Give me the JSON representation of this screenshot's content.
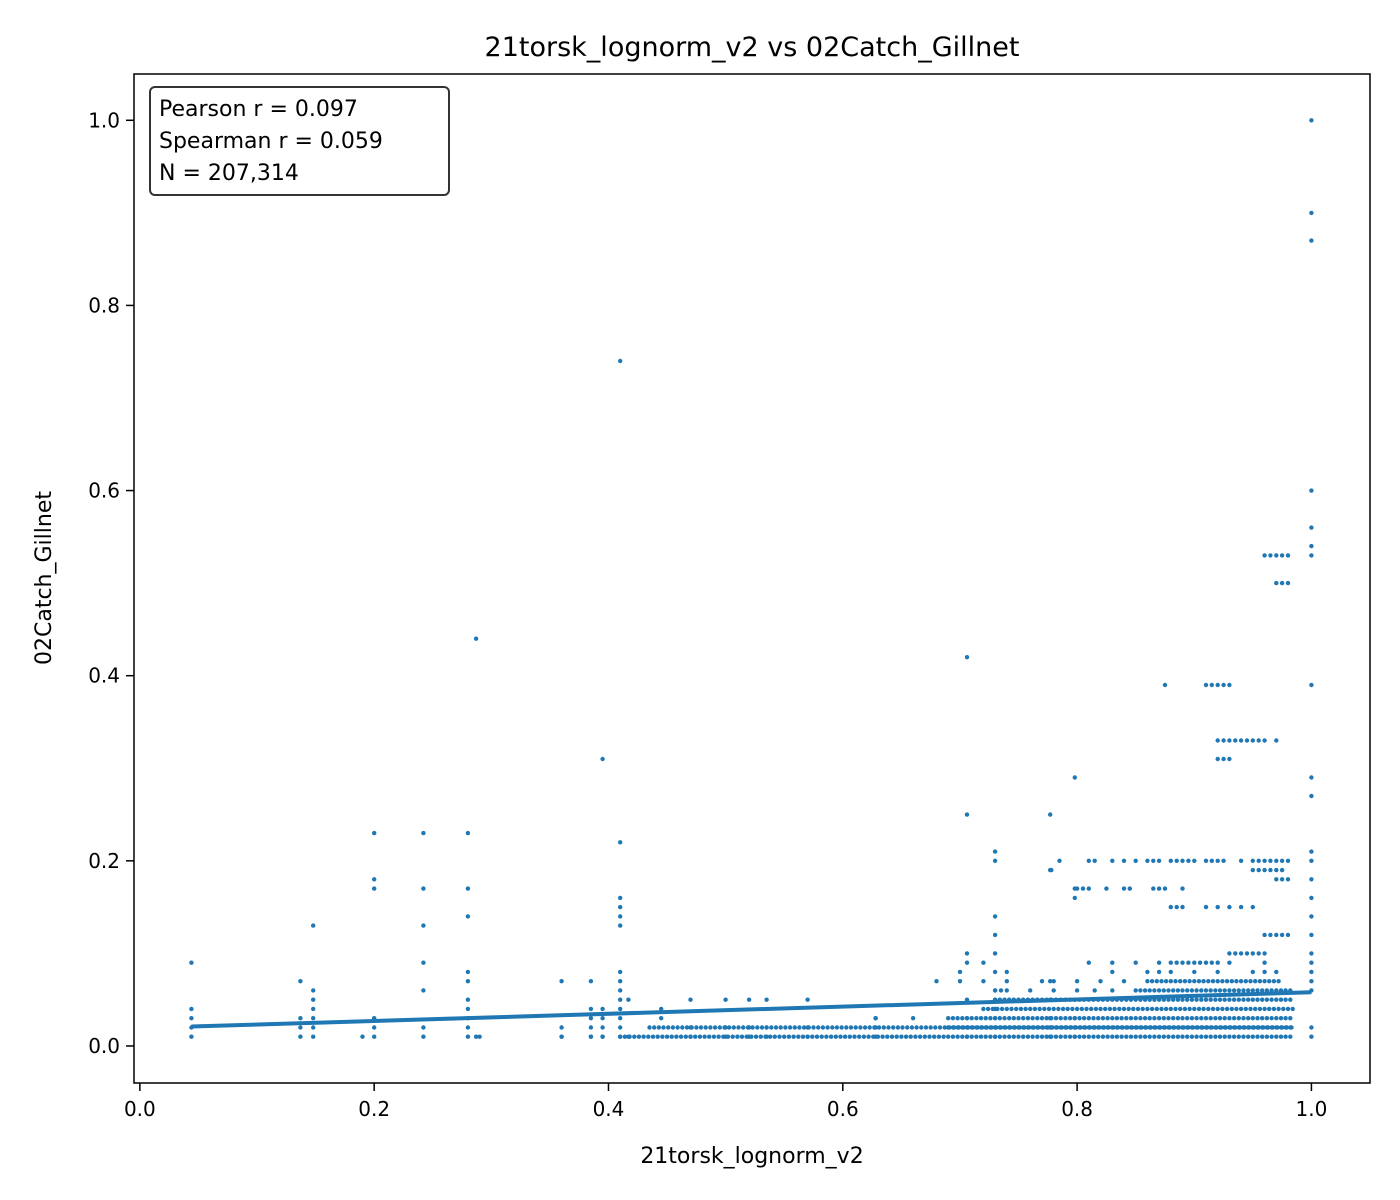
{
  "chart_data": {
    "type": "scatter",
    "title": "21torsk_lognorm_v2 vs 02Catch_Gillnet",
    "xlabel": "21torsk_lognorm_v2",
    "ylabel": "02Catch_Gillnet",
    "xlim": [
      -0.005,
      1.05
    ],
    "ylim": [
      -0.04,
      1.05
    ],
    "xticks": [
      0.0,
      0.2,
      0.4,
      0.6,
      0.8,
      1.0
    ],
    "xtick_labels": [
      "0.0",
      "0.2",
      "0.4",
      "0.6",
      "0.8",
      "1.0"
    ],
    "yticks": [
      0.0,
      0.2,
      0.4,
      0.6,
      0.8,
      1.0
    ],
    "ytick_labels": [
      "0.0",
      "0.2",
      "0.4",
      "0.6",
      "0.8",
      "1.0"
    ],
    "grid": false,
    "stats_box": {
      "placement": "top-left",
      "lines": [
        "Pearson r = 0.097",
        "Spearman r = 0.059",
        "N = 207,314"
      ]
    },
    "point_color": "#1f77b4",
    "regression_line": {
      "color": "#1f77b4",
      "x": [
        0.044,
        1.0
      ],
      "y": [
        0.021,
        0.058
      ]
    },
    "columns": [
      {
        "x": 0.044,
        "y": [
          0.01,
          0.02,
          0.03,
          0.04,
          0.09
        ]
      },
      {
        "x": 0.137,
        "y": [
          0.01,
          0.02,
          0.03,
          0.07
        ]
      },
      {
        "x": 0.148,
        "y": [
          0.01,
          0.02,
          0.03,
          0.04,
          0.05,
          0.06,
          0.13
        ]
      },
      {
        "x": 0.19,
        "y": [
          0.01
        ]
      },
      {
        "x": 0.2,
        "y": [
          0.01,
          0.02,
          0.03,
          0.17,
          0.18,
          0.23
        ]
      },
      {
        "x": 0.242,
        "y": [
          0.01,
          0.02,
          0.06,
          0.09,
          0.13,
          0.17,
          0.23
        ]
      },
      {
        "x": 0.28,
        "y": [
          0.01,
          0.02,
          0.03,
          0.04,
          0.05,
          0.07,
          0.08,
          0.14,
          0.17,
          0.23
        ]
      },
      {
        "x": 0.287,
        "y": [
          0.01,
          0.44
        ]
      },
      {
        "x": 0.36,
        "y": [
          0.01,
          0.02,
          0.07
        ]
      },
      {
        "x": 0.385,
        "y": [
          0.01,
          0.02,
          0.03,
          0.04,
          0.07
        ]
      },
      {
        "x": 0.395,
        "y": [
          0.01,
          0.02,
          0.03,
          0.04,
          0.31
        ]
      },
      {
        "x": 0.41,
        "y": [
          0.01,
          0.02,
          0.03,
          0.04,
          0.05,
          0.06,
          0.07,
          0.08,
          0.13,
          0.14,
          0.15,
          0.16,
          0.22,
          0.74
        ]
      },
      {
        "x": 0.417,
        "y": [
          0.01,
          0.05
        ]
      },
      {
        "x": 0.47,
        "y": [
          0.01,
          0.02,
          0.05
        ]
      },
      {
        "x": 0.5,
        "y": [
          0.01,
          0.02,
          0.05
        ]
      },
      {
        "x": 0.52,
        "y": [
          0.01,
          0.02,
          0.05
        ]
      },
      {
        "x": 0.535,
        "y": [
          0.01,
          0.02,
          0.05
        ]
      },
      {
        "x": 0.57,
        "y": [
          0.01,
          0.02,
          0.05
        ]
      },
      {
        "x": 0.628,
        "y": [
          0.01,
          0.02,
          0.03
        ]
      },
      {
        "x": 0.706,
        "y": [
          0.01,
          0.02,
          0.03,
          0.05,
          0.09,
          0.1,
          0.25,
          0.42
        ]
      },
      {
        "x": 0.73,
        "y": [
          0.01,
          0.02,
          0.03,
          0.04,
          0.05,
          0.06,
          0.08,
          0.1,
          0.12,
          0.14,
          0.2,
          0.21
        ]
      },
      {
        "x": 0.777,
        "y": [
          0.01,
          0.02,
          0.03,
          0.05,
          0.07,
          0.19,
          0.25
        ]
      },
      {
        "x": 0.798,
        "y": [
          0.01,
          0.02,
          0.03,
          0.05,
          0.16,
          0.17,
          0.29
        ]
      },
      {
        "x": 0.875,
        "y": [
          0.39
        ]
      },
      {
        "x": 1.0,
        "y": [
          0.01,
          0.02,
          0.06,
          0.07,
          0.08,
          0.09,
          0.1,
          0.12,
          0.14,
          0.16,
          0.18,
          0.2,
          0.21,
          0.27,
          0.29,
          0.39,
          0.53,
          0.54,
          0.56,
          0.6,
          0.87,
          0.9,
          1.0
        ]
      }
    ],
    "dense_rows": [
      {
        "y": 0.01,
        "x_start": 0.41,
        "x_end": 0.985
      },
      {
        "y": 0.02,
        "x_start": 0.435,
        "x_end": 0.985
      },
      {
        "y": 0.02,
        "x_start": 0.69,
        "x_end": 0.985
      },
      {
        "y": 0.03,
        "x_start": 0.69,
        "x_end": 0.985
      },
      {
        "y": 0.04,
        "x_start": 0.72,
        "x_end": 0.985
      },
      {
        "y": 0.05,
        "x_start": 0.73,
        "x_end": 0.985
      },
      {
        "y": 0.06,
        "x_start": 0.85,
        "x_end": 0.985
      },
      {
        "y": 0.07,
        "x_start": 0.86,
        "x_end": 0.975
      }
    ],
    "sparse_rows": [
      {
        "y": 0.01,
        "x": [
          0.29,
          0.36,
          0.385,
          0.395
        ]
      },
      {
        "y": 0.03,
        "x": [
          0.445,
          0.628,
          0.66
        ]
      },
      {
        "y": 0.04,
        "x": [
          0.445
        ]
      },
      {
        "y": 0.06,
        "x": [
          0.73,
          0.735,
          0.74,
          0.76,
          0.78,
          0.8,
          0.815,
          0.83
        ]
      },
      {
        "y": 0.07,
        "x": [
          0.68,
          0.7,
          0.72,
          0.74,
          0.77,
          0.78,
          0.8,
          0.82,
          0.84
        ]
      },
      {
        "y": 0.08,
        "x": [
          0.7,
          0.74,
          0.83,
          0.86,
          0.87,
          0.88,
          0.9,
          0.92,
          0.95,
          0.96,
          0.97
        ]
      },
      {
        "y": 0.09,
        "x": [
          0.72,
          0.81,
          0.83,
          0.85,
          0.87,
          0.88,
          0.885,
          0.89,
          0.895,
          0.9,
          0.905,
          0.91,
          0.915,
          0.92,
          0.93,
          0.96
        ]
      },
      {
        "y": 0.1,
        "x": [
          0.93,
          0.935,
          0.94,
          0.945,
          0.95,
          0.955,
          0.96
        ]
      },
      {
        "y": 0.12,
        "x": [
          0.96,
          0.965,
          0.97,
          0.975,
          0.98
        ]
      },
      {
        "y": 0.15,
        "x": [
          0.88,
          0.885,
          0.89,
          0.91,
          0.92,
          0.93,
          0.94,
          0.95
        ]
      },
      {
        "y": 0.17,
        "x": [
          0.8,
          0.805,
          0.81,
          0.825,
          0.84,
          0.845,
          0.865,
          0.87,
          0.875,
          0.89
        ]
      },
      {
        "y": 0.18,
        "x": [
          0.97,
          0.975,
          0.98
        ]
      },
      {
        "y": 0.19,
        "x": [
          0.778,
          0.95,
          0.955,
          0.96,
          0.965,
          0.97,
          0.975
        ]
      },
      {
        "y": 0.2,
        "x": [
          0.785,
          0.81,
          0.815,
          0.83,
          0.84,
          0.85,
          0.86,
          0.865,
          0.87,
          0.88,
          0.885,
          0.89,
          0.895,
          0.9,
          0.91,
          0.915,
          0.92,
          0.925,
          0.94,
          0.95,
          0.955,
          0.96,
          0.965,
          0.97,
          0.975,
          0.98
        ]
      },
      {
        "y": 0.31,
        "x": [
          0.92,
          0.925,
          0.93
        ]
      },
      {
        "y": 0.33,
        "x": [
          0.92,
          0.925,
          0.93,
          0.935,
          0.94,
          0.945,
          0.95,
          0.955,
          0.96,
          0.97
        ]
      },
      {
        "y": 0.39,
        "x": [
          0.91,
          0.915,
          0.92,
          0.925,
          0.93
        ]
      },
      {
        "y": 0.5,
        "x": [
          0.97,
          0.975,
          0.98
        ]
      },
      {
        "y": 0.53,
        "x": [
          0.96,
          0.965,
          0.97,
          0.975,
          0.98
        ]
      }
    ]
  }
}
